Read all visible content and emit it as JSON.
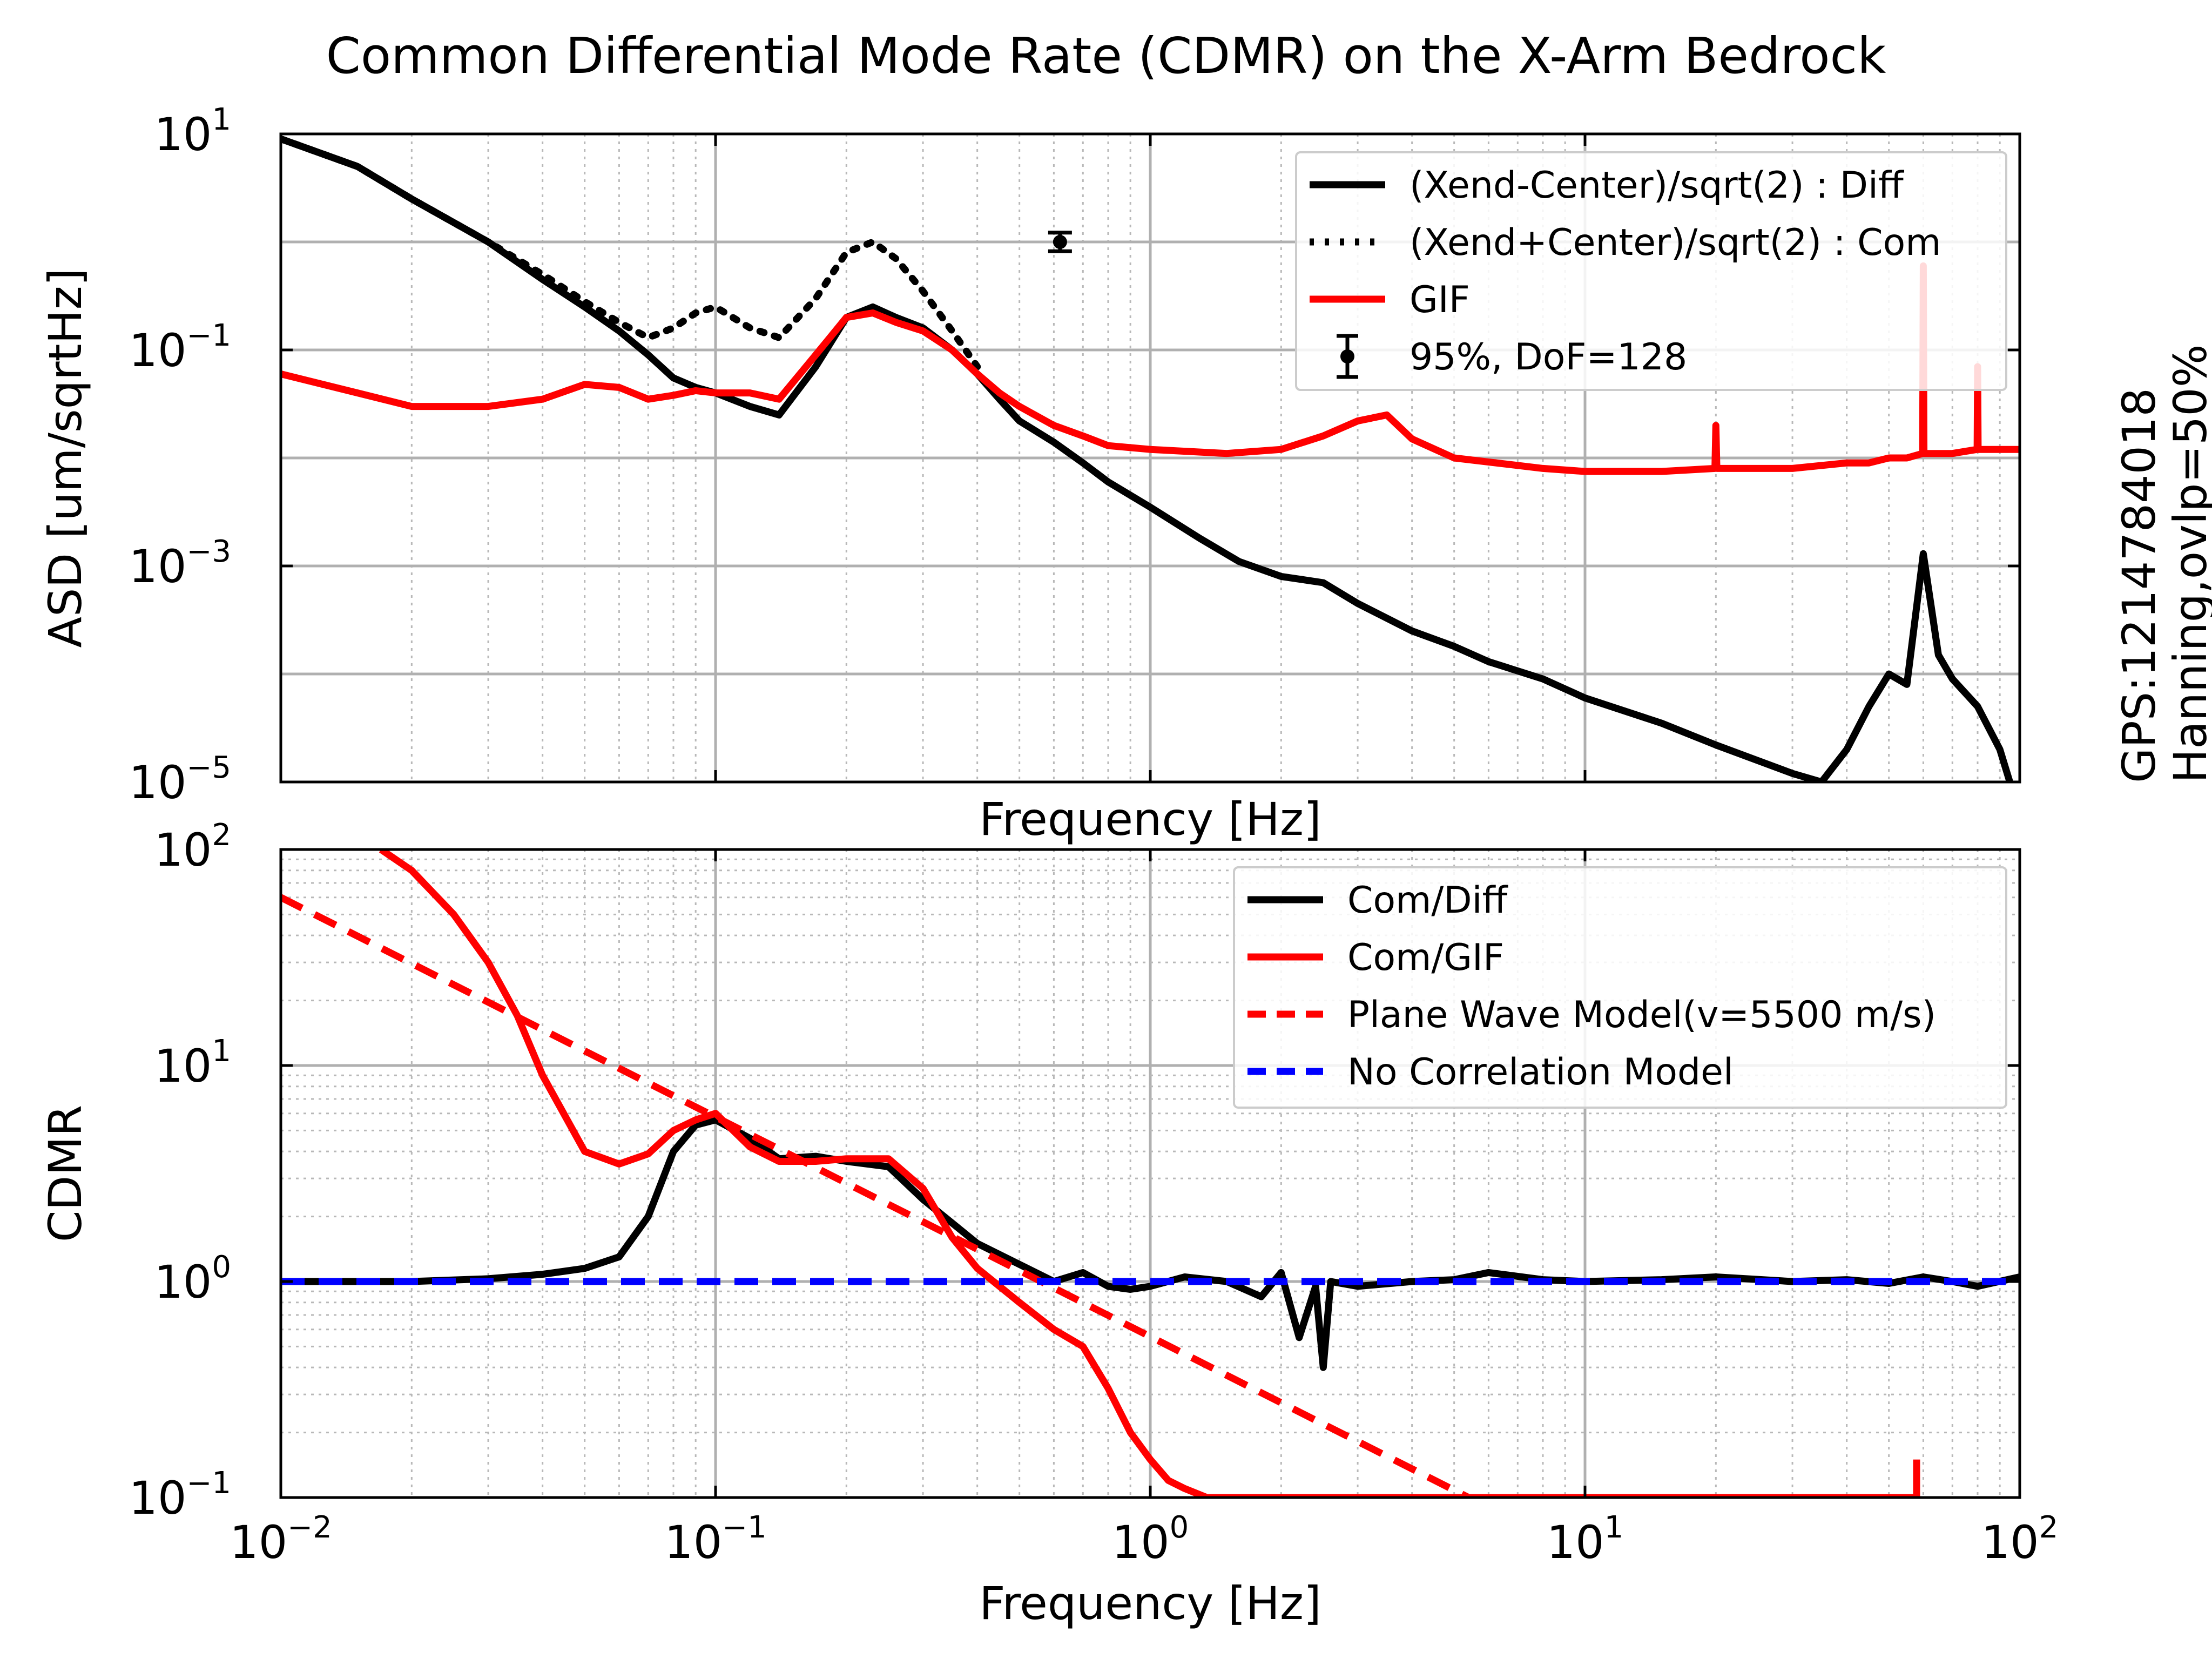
{
  "figure": {
    "title": "Common Differential Mode Rate (CDMR) on the X-Arm Bedrock",
    "side_text": [
      "GPS:1214784018",
      "Hanning,ovlp=50%"
    ]
  },
  "chart_data": [
    {
      "type": "line",
      "title": "",
      "xlabel": "Frequency [Hz]",
      "ylabel": "ASD [um/sqrtHz]",
      "xscale": "log",
      "yscale": "log",
      "xlim": [
        0.01,
        100
      ],
      "ylim": [
        1e-05,
        10
      ],
      "grid": true,
      "x_ticks": [
        {
          "value": 0.01,
          "base": "10",
          "exp": "−2"
        },
        {
          "value": 0.1,
          "base": "10",
          "exp": "−1"
        },
        {
          "value": 1,
          "base": "10",
          "exp": "0"
        },
        {
          "value": 10,
          "base": "10",
          "exp": "1"
        },
        {
          "value": 100,
          "base": "10",
          "exp": "2"
        }
      ],
      "x_ticklabels_visible": false,
      "y_ticks": [
        {
          "value": 1e-05,
          "base": "10",
          "exp": "−5"
        },
        {
          "value": 0.001,
          "base": "10",
          "exp": "−3"
        },
        {
          "value": 0.1,
          "base": "10",
          "exp": "−1"
        },
        {
          "value": 10,
          "base": "10",
          "exp": "1"
        }
      ],
      "legend": {
        "position": "top-right"
      },
      "series": [
        {
          "name": "(Xend-Center)/sqrt(2) : Diff",
          "color": "#000000",
          "style": "solid",
          "x": [
            0.01,
            0.015,
            0.02,
            0.03,
            0.04,
            0.05,
            0.06,
            0.07,
            0.08,
            0.09,
            0.1,
            0.12,
            0.14,
            0.17,
            0.2,
            0.23,
            0.26,
            0.3,
            0.35,
            0.4,
            0.45,
            0.5,
            0.6,
            0.7,
            0.8,
            1.0,
            1.3,
            1.6,
            2.0,
            2.5,
            3.0,
            4.0,
            5.0,
            6.0,
            8.0,
            10,
            15,
            20,
            30,
            35,
            40,
            45,
            50,
            55,
            60,
            65,
            70,
            80,
            90,
            100
          ],
          "y": [
            9.0,
            5.0,
            2.5,
            1.0,
            0.45,
            0.25,
            0.15,
            0.09,
            0.055,
            0.045,
            0.04,
            0.03,
            0.025,
            0.07,
            0.2,
            0.25,
            0.2,
            0.16,
            0.1,
            0.06,
            0.035,
            0.022,
            0.014,
            0.009,
            0.006,
            0.0035,
            0.0018,
            0.0011,
            0.0008,
            0.0007,
            0.00045,
            0.00025,
            0.00018,
            0.00013,
            9e-05,
            6e-05,
            3.5e-05,
            2.2e-05,
            1.2e-05,
            1e-05,
            2e-05,
            5e-05,
            0.0001,
            8e-05,
            0.0013,
            0.00015,
            9e-05,
            5e-05,
            2e-05,
            5e-06
          ]
        },
        {
          "name": "(Xend+Center)/sqrt(2) : Com",
          "color": "#000000",
          "style": "dotted",
          "x": [
            0.01,
            0.015,
            0.02,
            0.03,
            0.04,
            0.05,
            0.06,
            0.07,
            0.08,
            0.09,
            0.1,
            0.12,
            0.14,
            0.17,
            0.2,
            0.23,
            0.26,
            0.3,
            0.35,
            0.4
          ],
          "y": [
            9.0,
            5.0,
            2.5,
            1.0,
            0.5,
            0.28,
            0.18,
            0.13,
            0.16,
            0.22,
            0.25,
            0.16,
            0.13,
            0.3,
            0.8,
            1.0,
            0.7,
            0.35,
            0.15,
            0.07
          ]
        },
        {
          "name": "GIF",
          "color": "#ff0000",
          "style": "solid",
          "x": [
            0.01,
            0.015,
            0.02,
            0.025,
            0.03,
            0.04,
            0.05,
            0.06,
            0.07,
            0.08,
            0.09,
            0.1,
            0.12,
            0.14,
            0.17,
            0.2,
            0.23,
            0.26,
            0.3,
            0.35,
            0.4,
            0.45,
            0.5,
            0.6,
            0.7,
            0.8,
            1.0,
            1.5,
            2.0,
            2.5,
            3.0,
            3.5,
            4.0,
            5.0,
            8.0,
            10,
            15,
            19.9,
            20,
            20.1,
            30,
            40,
            45,
            50,
            55,
            59.8,
            60,
            60.2,
            70,
            79.8,
            80,
            80.2,
            90,
            100
          ],
          "y": [
            0.06,
            0.04,
            0.03,
            0.03,
            0.03,
            0.035,
            0.048,
            0.045,
            0.035,
            0.038,
            0.042,
            0.04,
            0.04,
            0.035,
            0.09,
            0.2,
            0.22,
            0.18,
            0.15,
            0.1,
            0.06,
            0.04,
            0.03,
            0.02,
            0.016,
            0.013,
            0.012,
            0.011,
            0.012,
            0.016,
            0.022,
            0.025,
            0.015,
            0.01,
            0.008,
            0.0075,
            0.0075,
            0.008,
            0.02,
            0.008,
            0.008,
            0.009,
            0.009,
            0.01,
            0.01,
            0.011,
            0.6,
            0.011,
            0.011,
            0.012,
            0.07,
            0.012,
            0.012,
            0.012
          ]
        }
      ],
      "error_marker": {
        "name": "95%, DoF=128",
        "x": 0.62,
        "y": 1.0,
        "y_low": 0.82,
        "y_high": 1.22,
        "color": "#000000"
      }
    },
    {
      "type": "line",
      "title": "",
      "xlabel": "Frequency [Hz]",
      "ylabel": "CDMR",
      "xscale": "log",
      "yscale": "log",
      "xlim": [
        0.01,
        100
      ],
      "ylim": [
        0.1,
        100
      ],
      "grid": true,
      "x_ticks": [
        {
          "value": 0.01,
          "base": "10",
          "exp": "−2"
        },
        {
          "value": 0.1,
          "base": "10",
          "exp": "−1"
        },
        {
          "value": 1,
          "base": "10",
          "exp": "0"
        },
        {
          "value": 10,
          "base": "10",
          "exp": "1"
        },
        {
          "value": 100,
          "base": "10",
          "exp": "2"
        }
      ],
      "y_ticks": [
        {
          "value": 0.1,
          "base": "10",
          "exp": "−1"
        },
        {
          "value": 1,
          "base": "10",
          "exp": "0"
        },
        {
          "value": 10,
          "base": "10",
          "exp": "1"
        },
        {
          "value": 100,
          "base": "10",
          "exp": "2"
        }
      ],
      "legend": {
        "position": "top-right"
      },
      "series": [
        {
          "name": "Com/Diff",
          "color": "#000000",
          "style": "solid",
          "x": [
            0.01,
            0.02,
            0.03,
            0.04,
            0.05,
            0.06,
            0.07,
            0.08,
            0.09,
            0.1,
            0.12,
            0.14,
            0.17,
            0.2,
            0.25,
            0.3,
            0.4,
            0.5,
            0.6,
            0.7,
            0.8,
            0.9,
            1.0,
            1.2,
            1.5,
            1.8,
            2.0,
            2.2,
            2.4,
            2.5,
            2.6,
            3.0,
            4.0,
            5.0,
            6.0,
            8.0,
            10,
            15,
            20,
            30,
            40,
            50,
            60,
            70,
            80,
            100
          ],
          "y": [
            1.0,
            1.0,
            1.03,
            1.08,
            1.15,
            1.3,
            2.0,
            4.0,
            5.3,
            5.6,
            4.6,
            3.7,
            3.8,
            3.6,
            3.4,
            2.4,
            1.5,
            1.2,
            1.0,
            1.1,
            0.95,
            0.92,
            0.95,
            1.05,
            1.0,
            0.85,
            1.1,
            0.55,
            0.95,
            0.4,
            1.0,
            0.95,
            1.0,
            1.02,
            1.1,
            1.02,
            1.0,
            1.02,
            1.05,
            1.0,
            1.02,
            0.98,
            1.05,
            1.0,
            0.95,
            1.05
          ]
        },
        {
          "name": "Com/GIF",
          "color": "#ff0000",
          "style": "solid",
          "x": [
            0.017,
            0.02,
            0.025,
            0.03,
            0.035,
            0.04,
            0.05,
            0.06,
            0.07,
            0.08,
            0.09,
            0.1,
            0.12,
            0.14,
            0.17,
            0.2,
            0.25,
            0.3,
            0.35,
            0.4,
            0.5,
            0.6,
            0.7,
            0.8,
            0.9,
            1.0,
            1.1,
            1.2,
            1.35,
            57.9,
            57.9
          ],
          "y": [
            100,
            80,
            50,
            30,
            17,
            9,
            4.0,
            3.5,
            3.9,
            5.0,
            5.6,
            6.0,
            4.2,
            3.6,
            3.6,
            3.7,
            3.7,
            2.7,
            1.6,
            1.15,
            0.8,
            0.6,
            0.5,
            0.32,
            0.2,
            0.15,
            0.12,
            0.11,
            0.1,
            0.1,
            0.15
          ]
        },
        {
          "name": "Plane Wave Model(v=5500 m/s)",
          "color": "#ff0000",
          "style": "dashed",
          "x": [
            0.01,
            5.4
          ],
          "y": [
            60,
            0.1
          ]
        },
        {
          "name": "No Correlation Model",
          "color": "#0000ff",
          "style": "dashed",
          "x": [
            0.01,
            100
          ],
          "y": [
            1,
            1
          ]
        }
      ]
    }
  ]
}
